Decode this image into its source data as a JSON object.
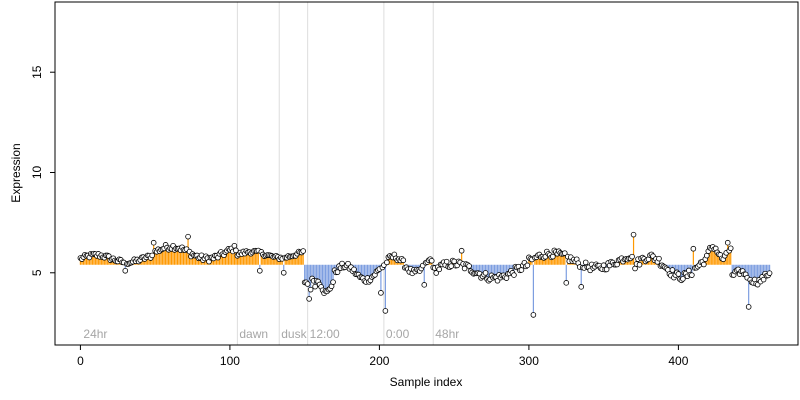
{
  "chart_data": {
    "type": "scatter",
    "title": "",
    "xlabel": "Sample index",
    "ylabel": "Expression",
    "xlim": [
      -17,
      480
    ],
    "ylim": [
      1.4,
      18.5
    ],
    "xticks": [
      0,
      100,
      200,
      300,
      400
    ],
    "yticks": [
      5,
      10,
      15
    ],
    "grid": false,
    "baseline": 5.4,
    "markers": [
      {
        "x": 105,
        "label": "dawn"
      },
      {
        "x": 133,
        "label": "dusk"
      },
      {
        "x": 152,
        "label": "12:00"
      },
      {
        "x": 203,
        "label": "0:00"
      },
      {
        "x": 236,
        "label": "48hr"
      }
    ],
    "corner_label": "24hr",
    "colors": {
      "above": "#ff9900",
      "below": "#7d9ee0",
      "marker": "#dddddd",
      "annotation": "#a6a6a6",
      "point_fill": "#ffffff",
      "point_edge": "#000000"
    },
    "segments": [
      {
        "start": 0,
        "end": 49,
        "level": 5.7,
        "amp": 0.18,
        "noise": 0.12
      },
      {
        "start": 49,
        "end": 105,
        "level": 6.0,
        "amp": 0.3,
        "noise": 0.15
      },
      {
        "start": 105,
        "end": 150,
        "level": 5.9,
        "amp": 0.15,
        "noise": 0.1
      },
      {
        "start": 150,
        "end": 156,
        "level": 4.4,
        "amp": 0.2,
        "noise": 0.2
      },
      {
        "start": 156,
        "end": 170,
        "level": 4.3,
        "amp": 0.3,
        "noise": 0.15
      },
      {
        "start": 170,
        "end": 203,
        "level": 5.0,
        "amp": 0.35,
        "noise": 0.15
      },
      {
        "start": 203,
        "end": 236,
        "level": 5.4,
        "amp": 0.4,
        "noise": 0.15
      },
      {
        "start": 236,
        "end": 300,
        "level": 5.1,
        "amp": 0.35,
        "noise": 0.2
      },
      {
        "start": 300,
        "end": 370,
        "level": 5.6,
        "amp": 0.35,
        "noise": 0.18
      },
      {
        "start": 370,
        "end": 420,
        "level": 5.3,
        "amp": 0.5,
        "noise": 0.2
      },
      {
        "start": 420,
        "end": 436,
        "level": 6.0,
        "amp": 0.3,
        "noise": 0.15
      },
      {
        "start": 436,
        "end": 462,
        "level": 4.8,
        "amp": 0.25,
        "noise": 0.15
      }
    ],
    "outliers": [
      {
        "x": 30,
        "y": 5.1
      },
      {
        "x": 49,
        "y": 6.5
      },
      {
        "x": 72,
        "y": 6.8
      },
      {
        "x": 120,
        "y": 5.1
      },
      {
        "x": 136,
        "y": 5.0
      },
      {
        "x": 153,
        "y": 3.7
      },
      {
        "x": 156,
        "y": 4.6
      },
      {
        "x": 201,
        "y": 4.0
      },
      {
        "x": 204,
        "y": 3.1
      },
      {
        "x": 230,
        "y": 4.4
      },
      {
        "x": 255,
        "y": 6.1
      },
      {
        "x": 303,
        "y": 2.9
      },
      {
        "x": 325,
        "y": 4.5
      },
      {
        "x": 335,
        "y": 4.3
      },
      {
        "x": 370,
        "y": 6.9
      },
      {
        "x": 410,
        "y": 6.2
      },
      {
        "x": 433,
        "y": 6.5
      },
      {
        "x": 447,
        "y": 3.3
      }
    ]
  }
}
